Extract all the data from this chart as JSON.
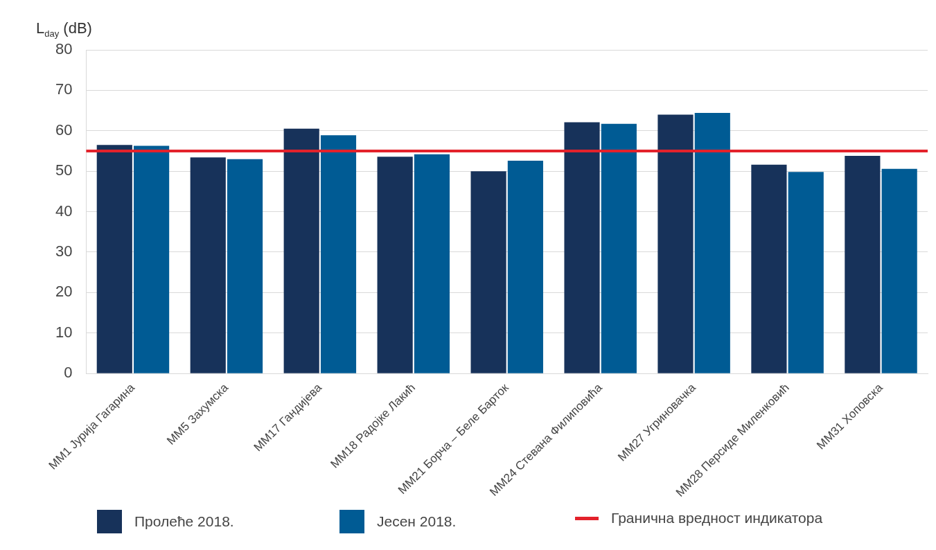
{
  "chart_data": {
    "type": "bar",
    "ylabel": "L$_{day}$ (dB)",
    "categories": [
      "ММ1 Јурија Гагарина",
      "ММ5 Захумска",
      "ММ17 Гандијева",
      "ММ18 Радојке Лакић",
      "ММ21 Борча – Беле Барток",
      "ММ24 Стевана Филиповића",
      "ММ27 Угриновачка",
      "ММ28 Персиде Миленковић",
      "ММ31 Хоповска"
    ],
    "series": [
      {
        "name": "Пролеће 2018.",
        "color": "#17325a",
        "values": [
          56.5,
          53.4,
          60.5,
          53.6,
          50.0,
          62.1,
          64.0,
          51.6,
          53.8
        ]
      },
      {
        "name": "Јесен 2018.",
        "color": "#005b94",
        "values": [
          56.3,
          53.0,
          58.9,
          54.2,
          52.6,
          61.7,
          64.4,
          49.8,
          50.6
        ]
      }
    ],
    "ylim": [
      0,
      80
    ],
    "yticks": [
      0,
      10,
      20,
      30,
      40,
      50,
      60,
      70,
      80
    ],
    "grid": "y",
    "legend": "bottom",
    "ref_lines": [
      {
        "axis": "y",
        "value": 55,
        "label": "Гранична вредност индикатора",
        "color": "#e3222b"
      }
    ]
  }
}
